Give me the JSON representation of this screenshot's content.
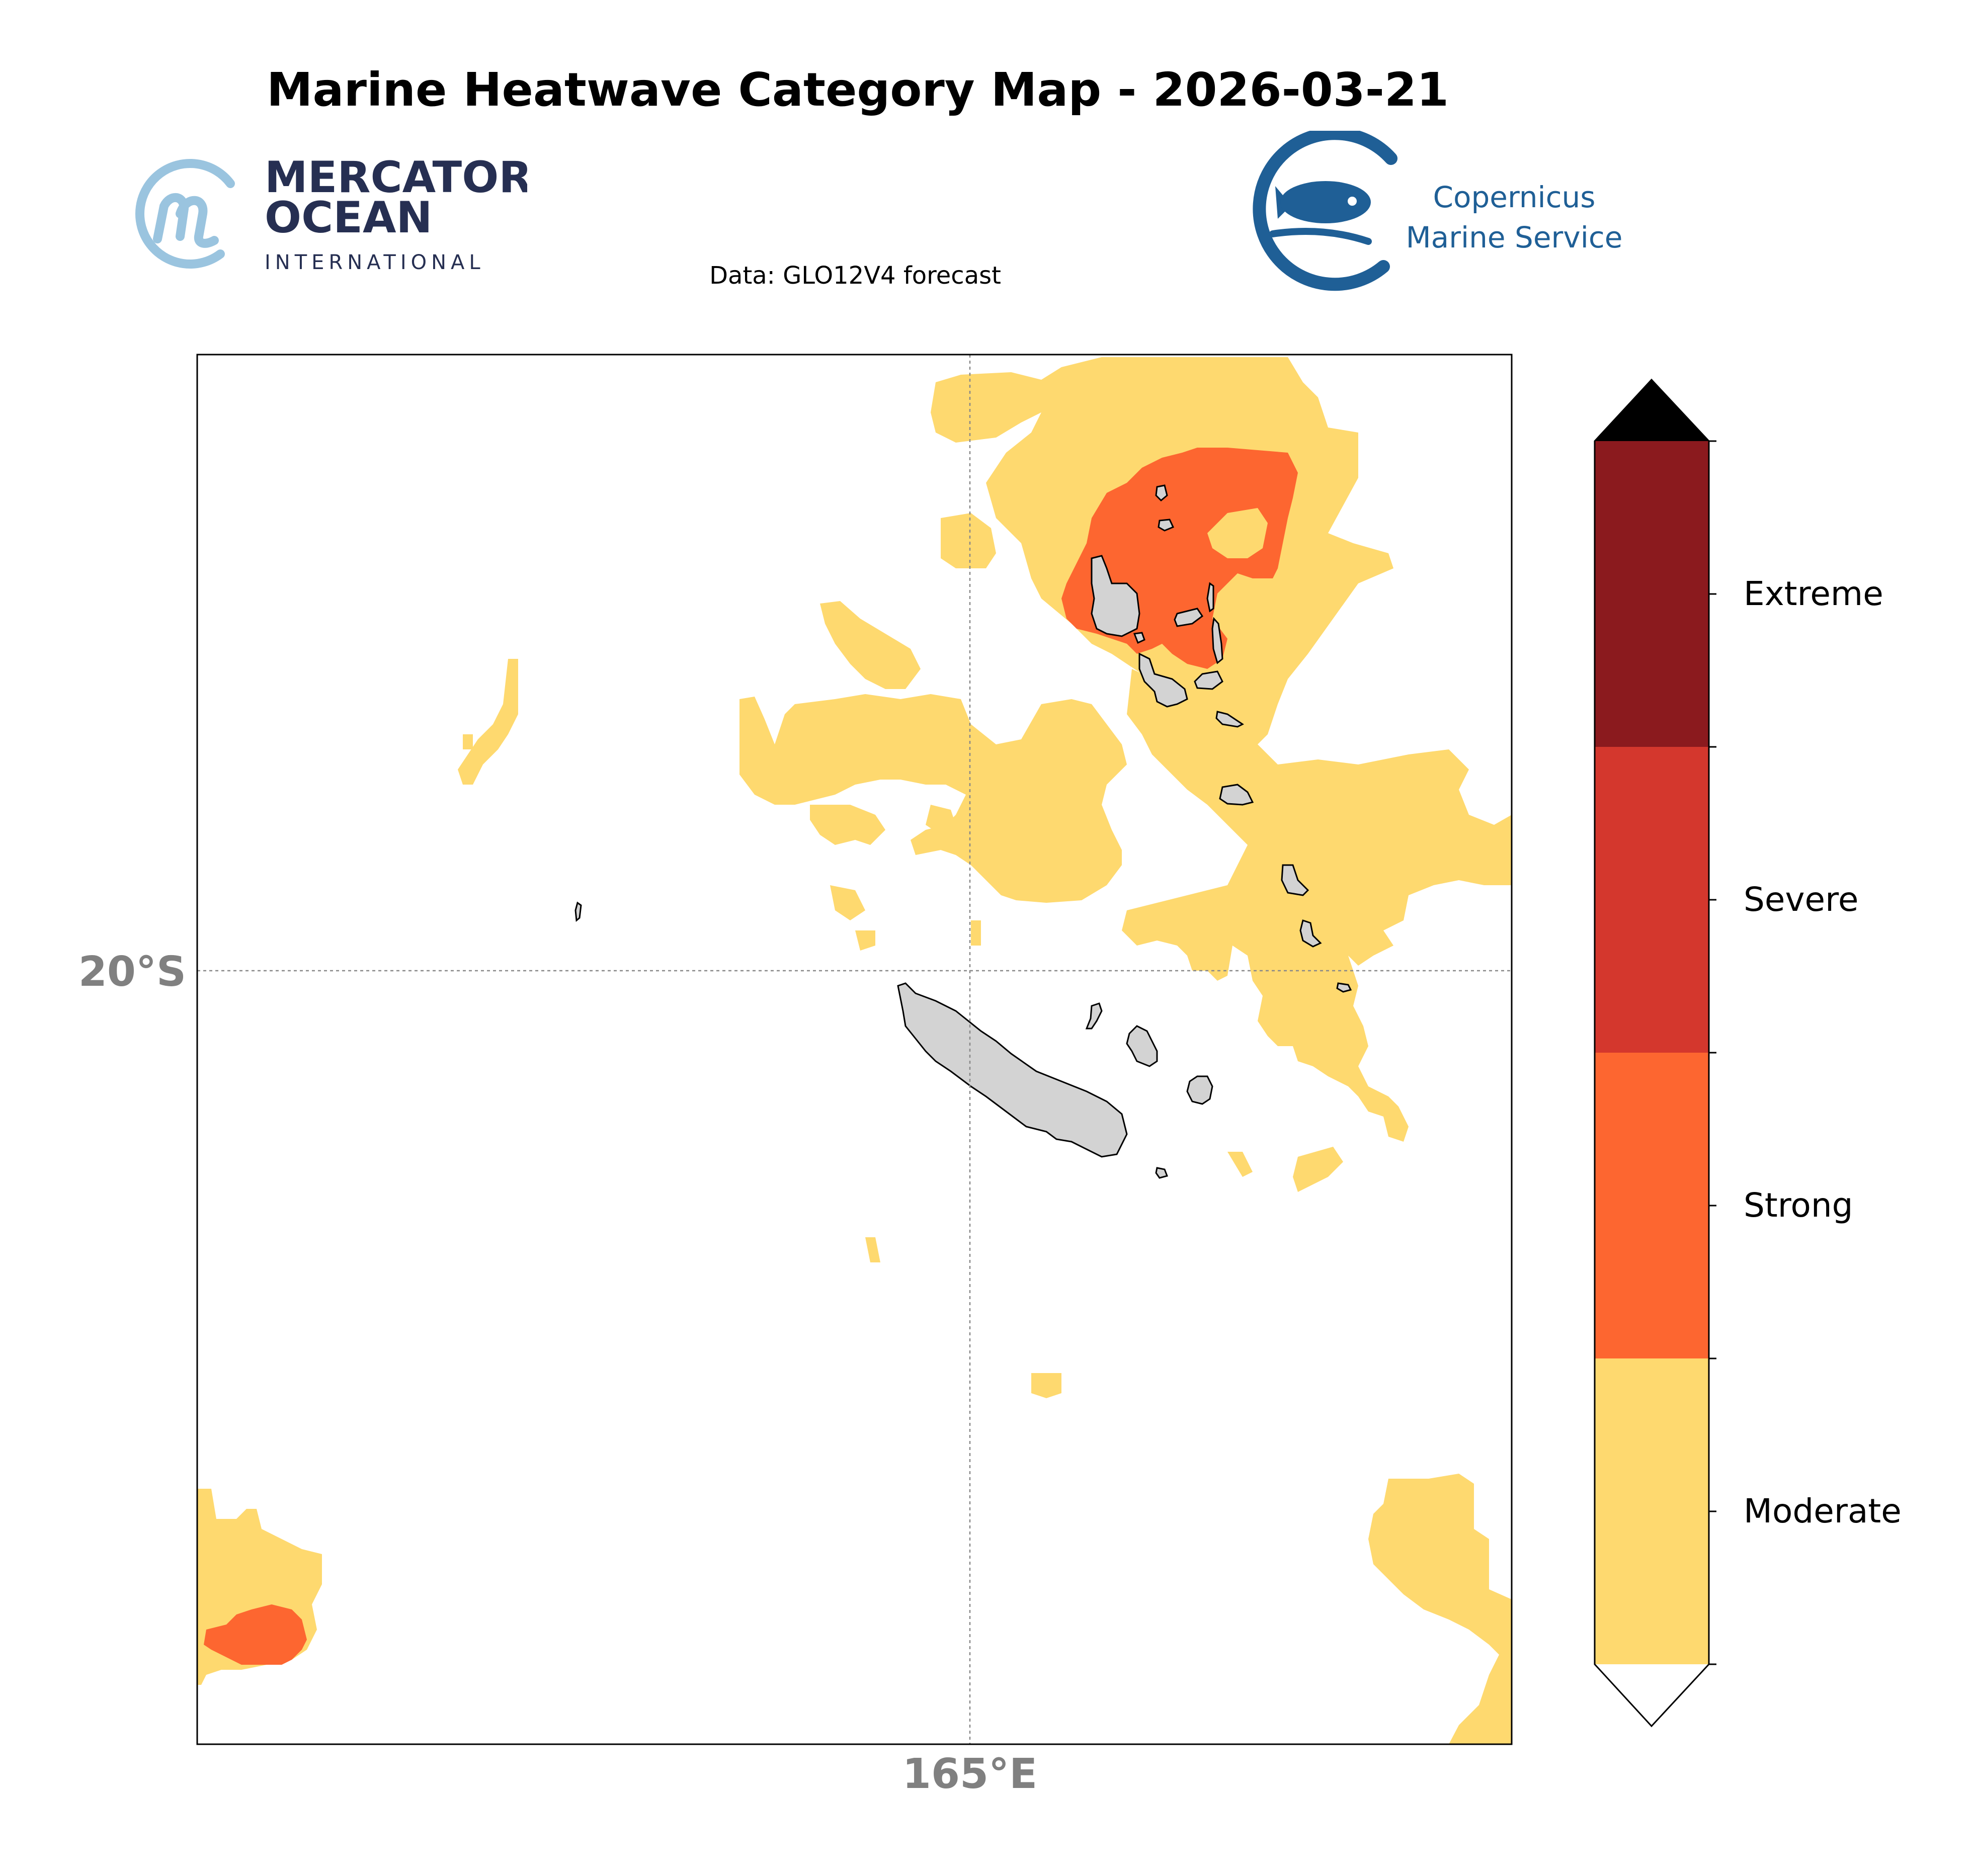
{
  "title": "Marine Heatwave Category Map - 2026-03-21",
  "subtitle": "Data: GLO12V4 forecast",
  "logos": {
    "mercator": {
      "line1": "MERCATOR",
      "line2": "OCEAN",
      "line3": "INTERNATIONAL",
      "mark_color": "#9ac4df",
      "text_color": "#262f52"
    },
    "copernicus": {
      "line1": "Copernicus",
      "line2": "Marine Service",
      "color": "#1f5f96"
    }
  },
  "map": {
    "lat_label": "20°S",
    "lon_label": "165°E",
    "gridline_lat": "20°S",
    "gridline_lon": "165°E",
    "land_color": "#d3d3d3",
    "ocean_color": "#ffffff"
  },
  "legend": {
    "categories": [
      {
        "label": "Moderate",
        "color": "#fed96f"
      },
      {
        "label": "Strong",
        "color": "#fd6630"
      },
      {
        "label": "Severe",
        "color": "#d4372d"
      },
      {
        "label": "Extreme",
        "color": "#8b1a1e"
      }
    ],
    "over_color": "#000000",
    "under_color": "#ffffff"
  }
}
